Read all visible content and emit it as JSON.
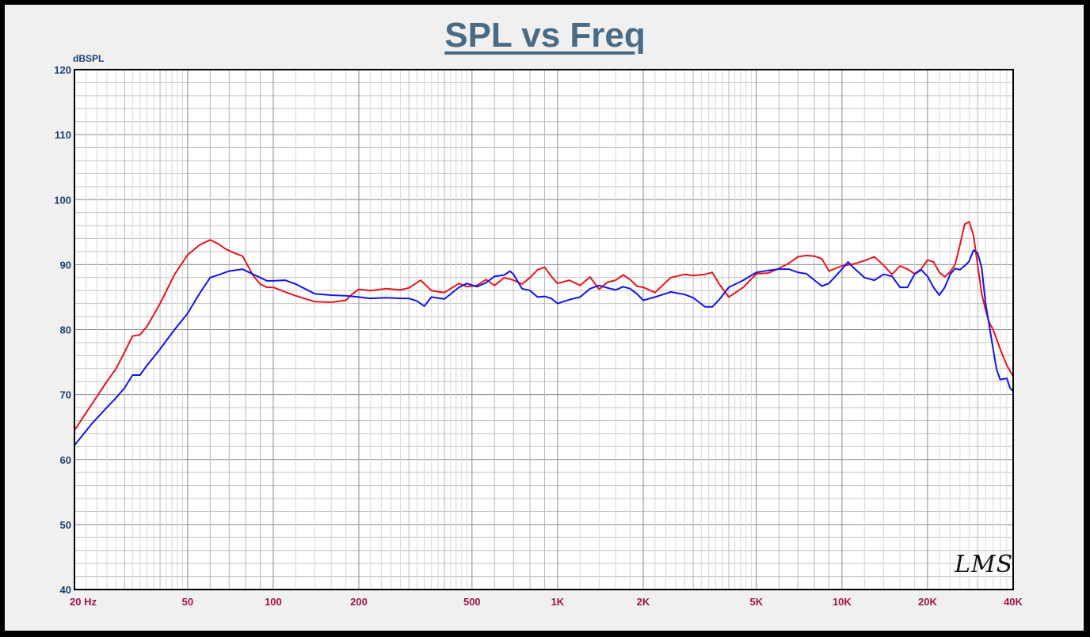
{
  "watermark": "LMS",
  "chart_data": {
    "type": "line",
    "title": "SPL vs Freq",
    "ylabel": "dBSPL",
    "xlabel": "",
    "xscale": "log",
    "xlim": [
      20,
      40000
    ],
    "ylim": [
      40,
      120
    ],
    "grid": true,
    "yticks": [
      {
        "value": 40,
        "label": "40"
      },
      {
        "value": 50,
        "label": "50"
      },
      {
        "value": 60,
        "label": "60"
      },
      {
        "value": 70,
        "label": "70"
      },
      {
        "value": 80,
        "label": "80"
      },
      {
        "value": 90,
        "label": "90"
      },
      {
        "value": 100,
        "label": "100"
      },
      {
        "value": 110,
        "label": "110"
      },
      {
        "value": 120,
        "label": "120"
      }
    ],
    "xticks": [
      {
        "value": 20,
        "label": "20  Hz"
      },
      {
        "value": 50,
        "label": "50"
      },
      {
        "value": 100,
        "label": "100"
      },
      {
        "value": 200,
        "label": "200"
      },
      {
        "value": 500,
        "label": "500"
      },
      {
        "value": 1000,
        "label": "1K"
      },
      {
        "value": 2000,
        "label": "2K"
      },
      {
        "value": 5000,
        "label": "5K"
      },
      {
        "value": 10000,
        "label": "10K"
      },
      {
        "value": 20000,
        "label": "20K"
      },
      {
        "value": 40000,
        "label": "40K"
      }
    ],
    "series": [
      {
        "name": "red",
        "color": "#e8141e",
        "x": [
          20,
          23,
          26,
          28,
          30,
          32,
          34,
          36,
          40,
          45,
          50,
          55,
          60,
          64,
          68,
          72,
          78,
          85,
          90,
          95,
          100,
          110,
          120,
          140,
          160,
          180,
          190,
          200,
          220,
          250,
          280,
          300,
          330,
          360,
          400,
          450,
          480,
          520,
          560,
          600,
          650,
          700,
          750,
          800,
          850,
          900,
          950,
          1000,
          1100,
          1200,
          1300,
          1400,
          1500,
          1600,
          1700,
          1800,
          1900,
          2000,
          2200,
          2500,
          2800,
          3000,
          3300,
          3500,
          3700,
          4000,
          4500,
          5000,
          5500,
          6000,
          6500,
          7000,
          7500,
          8000,
          8500,
          9000,
          10000,
          11000,
          12000,
          13000,
          14000,
          15000,
          16000,
          17000,
          18000,
          19000,
          20000,
          21000,
          22000,
          23000,
          24000,
          25000,
          26000,
          27000,
          28000,
          29000,
          30000,
          31000,
          32000,
          33000,
          34000,
          35000,
          36000,
          38000,
          40000
        ],
        "y": [
          64.5,
          68.5,
          72,
          74,
          76.5,
          79,
          79.2,
          80.5,
          84,
          88.5,
          91.5,
          93,
          93.8,
          93.2,
          92.4,
          91.9,
          91.3,
          88.3,
          87,
          86.5,
          86.5,
          85.8,
          85.2,
          84.3,
          84.2,
          84.5,
          85.5,
          86.2,
          86,
          86.3,
          86.1,
          86.4,
          87.6,
          86,
          85.7,
          87.1,
          86.6,
          86.8,
          87.7,
          86.8,
          88,
          87.6,
          87,
          88,
          89.2,
          89.6,
          88.2,
          87.1,
          87.6,
          86.8,
          88.1,
          86.2,
          87.3,
          87.6,
          88.4,
          87.7,
          86.7,
          86.5,
          85.7,
          88,
          88.5,
          88.3,
          88.5,
          88.8,
          87,
          85,
          86.5,
          88.6,
          88.7,
          89.4,
          90.2,
          91.2,
          91.4,
          91.3,
          90.9,
          89,
          89.8,
          90.1,
          90.6,
          91.2,
          89.9,
          88.5,
          89.8,
          89.3,
          88.6,
          89.3,
          90.7,
          90.4,
          88.8,
          88.1,
          88.9,
          90,
          93,
          96.2,
          96.6,
          94.5,
          90,
          85.5,
          83,
          81,
          80,
          78.5,
          77,
          74.5,
          72.8
        ]
      },
      {
        "name": "blue",
        "color": "#1414e8",
        "x": [
          20,
          23,
          26,
          28,
          30,
          32,
          34,
          36,
          40,
          45,
          50,
          55,
          60,
          65,
          70,
          78,
          85,
          90,
          95,
          100,
          110,
          120,
          140,
          160,
          180,
          200,
          220,
          250,
          280,
          300,
          320,
          340,
          360,
          400,
          450,
          480,
          520,
          560,
          600,
          650,
          680,
          700,
          750,
          800,
          850,
          900,
          950,
          1000,
          1100,
          1200,
          1300,
          1400,
          1500,
          1600,
          1700,
          1800,
          1900,
          2000,
          2200,
          2500,
          2800,
          3000,
          3300,
          3500,
          3700,
          4000,
          4500,
          5000,
          5500,
          6000,
          6500,
          7000,
          7500,
          8000,
          8500,
          9000,
          10000,
          10500,
          11000,
          12000,
          13000,
          14000,
          15000,
          16000,
          17000,
          18000,
          19000,
          20000,
          21000,
          22000,
          23000,
          24000,
          25000,
          26000,
          27000,
          28000,
          29000,
          30000,
          31000,
          32000,
          33000,
          34000,
          35000,
          36000,
          38000,
          39000,
          40000
        ],
        "y": [
          62.2,
          65.5,
          68,
          69.5,
          71,
          73,
          73,
          74.5,
          77,
          80,
          82.5,
          85.5,
          88,
          88.5,
          89,
          89.3,
          88.5,
          88,
          87.5,
          87.5,
          87.6,
          87,
          85.5,
          85.3,
          85.2,
          85,
          84.8,
          84.9,
          84.8,
          84.8,
          84.4,
          83.6,
          85,
          84.7,
          86.5,
          87.1,
          86.6,
          87.2,
          88.2,
          88.4,
          89,
          88.5,
          86.3,
          86,
          85,
          85.1,
          84.8,
          84,
          84.6,
          85,
          86.3,
          86.8,
          86.4,
          86.1,
          86.6,
          86.3,
          85.5,
          84.5,
          85,
          85.8,
          85.4,
          84.9,
          83.5,
          83.5,
          84.6,
          86.5,
          87.6,
          88.8,
          89.1,
          89.3,
          89.3,
          88.8,
          88.6,
          87.6,
          86.7,
          87.1,
          89.3,
          90.4,
          89.5,
          88,
          87.6,
          88.5,
          88.2,
          86.5,
          86.5,
          88.5,
          89.2,
          88.2,
          86.5,
          85.3,
          86.5,
          88.5,
          89.4,
          89.2,
          89.8,
          90.5,
          92.2,
          91.8,
          89.5,
          84,
          80.5,
          77,
          73.8,
          72.3,
          72.5,
          71,
          70.5
        ]
      }
    ]
  }
}
